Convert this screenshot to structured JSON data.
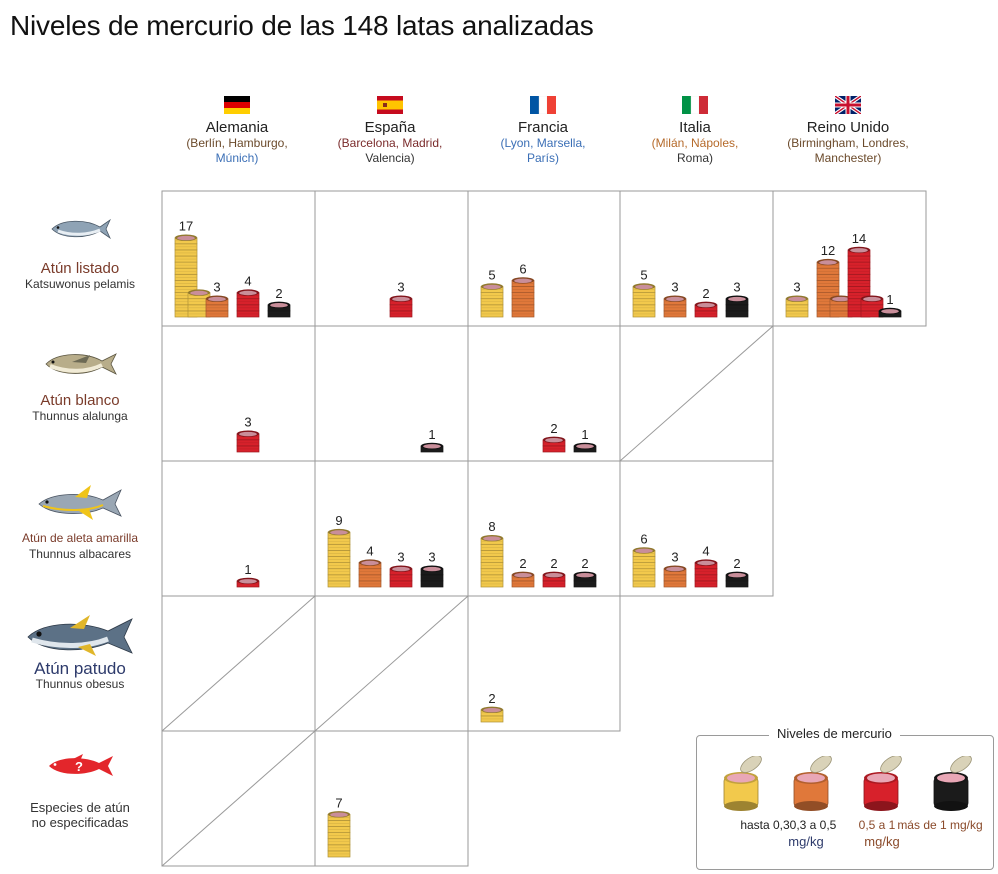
{
  "title": "Niveles de mercurio de las 148 latas analizadas",
  "colors": {
    "hasta_0_3": "#f2c94c",
    "0_3_a_0_5": "#e0783a",
    "0_5_a_1": "#d7212b",
    "mas_de_1": "#1b1b1b",
    "grid": "#9a9a9a"
  },
  "countries": [
    {
      "name": "Alemania",
      "cities_pre": "(Berlín, Hamburgo,",
      "cities_post": "Múnich)",
      "flag": "germany-flag"
    },
    {
      "name": "España",
      "cities_pre": "(Barcelona, Madrid,",
      "cities_post": "Valencia)",
      "flag": "spain-flag"
    },
    {
      "name": "Francia",
      "cities_pre": "(Lyon, Marsella,",
      "cities_post": "París)",
      "flag": "france-flag"
    },
    {
      "name": "Italia",
      "cities_pre": "(Milán, Nápoles,",
      "cities_post": "Roma)",
      "flag": "italy-flag"
    },
    {
      "name": "Reino Unido",
      "cities_pre": "(Birmingham, Londres,",
      "cities_post": "Manchester)",
      "flag": "uk-flag"
    }
  ],
  "species": [
    {
      "name": "Atún listado",
      "sci": "Katsuwonus pelamis",
      "icon": "skipjack-tuna-icon"
    },
    {
      "name": "Atún blanco",
      "sci": "Thunnus alalunga",
      "icon": "albacore-tuna-icon"
    },
    {
      "name": "Atún de aleta amarilla",
      "sci": "Thunnus albacares",
      "icon": "yellowfin-tuna-icon"
    },
    {
      "name": "Atún patudo",
      "sci": "Thunnus obesus",
      "icon": "bigeye-tuna-icon"
    },
    {
      "name": "Especies de atún",
      "name2": "no especificadas",
      "sci": "",
      "icon": "unknown-tuna-icon"
    }
  ],
  "legend": {
    "title": "Niveles de mercurio",
    "levels": [
      "hasta 0,3",
      "0,3 a 0,5",
      "0,5 a 1",
      "más de 1 mg/kg"
    ],
    "unit_left": "mg/kg",
    "unit_right": "mg/kg"
  },
  "chart_data": {
    "type": "table",
    "title": "Niveles de mercurio de las 148 latas analizadas",
    "levels": [
      "hasta 0,3",
      "0,3 a 0,5",
      "0,5 a 1",
      "más de 1 mg/kg"
    ],
    "rows": [
      "Atún listado",
      "Atún blanco",
      "Atún de aleta amarilla",
      "Atún patudo",
      "Especies de atún no especificadas"
    ],
    "columns": [
      "Alemania",
      "España",
      "Francia",
      "Italia",
      "Reino Unido"
    ],
    "cells": [
      [
        [
          17,
          3,
          4,
          2
        ],
        [
          0,
          0,
          3,
          0
        ],
        [
          5,
          6,
          0,
          0
        ],
        [
          5,
          3,
          2,
          3
        ],
        [
          3,
          12,
          14,
          1
        ]
      ],
      [
        [
          0,
          0,
          3,
          0
        ],
        [
          0,
          0,
          0,
          1
        ],
        [
          0,
          0,
          2,
          1
        ],
        null,
        null
      ],
      [
        [
          0,
          0,
          1,
          0
        ],
        [
          9,
          4,
          3,
          3
        ],
        [
          8,
          2,
          2,
          2
        ],
        [
          6,
          3,
          4,
          2
        ],
        null
      ],
      [
        null,
        null,
        [
          2,
          0,
          0,
          0
        ],
        null,
        null
      ],
      [
        null,
        [
          7,
          0,
          0,
          0
        ],
        null,
        null,
        null
      ]
    ]
  }
}
